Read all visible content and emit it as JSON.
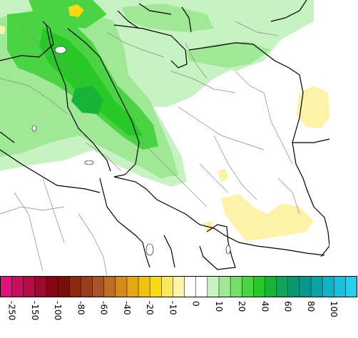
{
  "colorbar": {
    "colors": [
      "#e0137d",
      "#c8105a",
      "#b40d44",
      "#9e0a2c",
      "#870616",
      "#7a0e08",
      "#8b2a12",
      "#9c3d1a",
      "#a85424",
      "#bd6e20",
      "#d58b1a",
      "#e6a716",
      "#f1c212",
      "#fadb12",
      "#fbe75a",
      "#fcf3a8",
      "#ffffff",
      "#ffffff",
      "#c7f2c2",
      "#9fe895",
      "#74de6a",
      "#4ad444",
      "#29c829",
      "#16b53a",
      "#0ea55a",
      "#0a9673",
      "#08978c",
      "#0aa3a8",
      "#10b2c4",
      "#18c1dc",
      "#22cfee"
    ],
    "tick_labels": [
      "-250",
      "-150",
      "-100",
      "-80",
      "-60",
      "-40",
      "-20",
      "-10",
      "0",
      "10",
      "20",
      "40",
      "60",
      "80",
      "100"
    ]
  },
  "map": {
    "land_color": "#ffffff",
    "border_color": "#000000",
    "sub_border_color": "#888888",
    "precip_colors": {
      "light_green": "#c7f2c2",
      "mid_green": "#9fe895",
      "green": "#4ad444",
      "dark_green": "#29c829",
      "teal": "#16b53a",
      "light_yellow": "#fcf3a8",
      "yellow": "#fadb12"
    }
  }
}
